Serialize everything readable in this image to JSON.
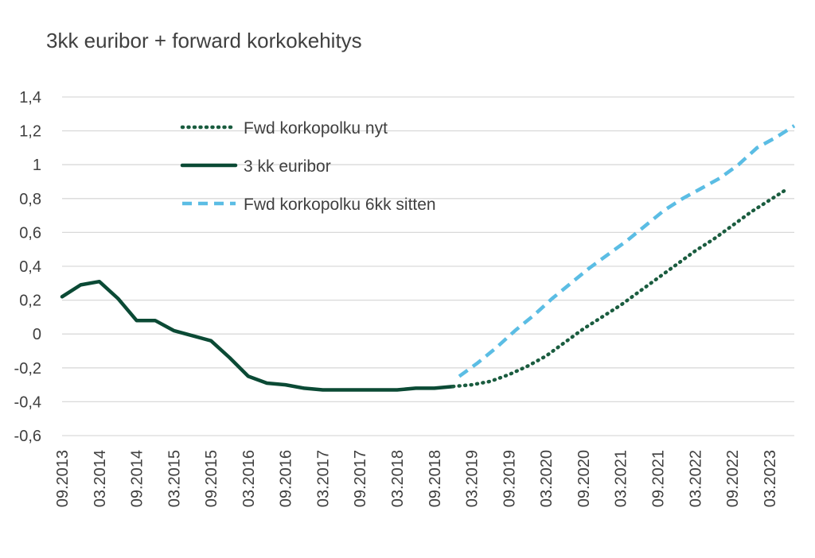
{
  "chart_data": {
    "type": "line",
    "title": "3kk euribor + forward korkokehitys",
    "xlabel": "",
    "ylabel": "",
    "ylim": [
      -0.6,
      1.4
    ],
    "yticks": [
      "1,4",
      "1,2",
      "1",
      "0,8",
      "0,6",
      "0,4",
      "0,2",
      "0",
      "-0,2",
      "-0,4",
      "-0,6"
    ],
    "ytick_values": [
      1.4,
      1.2,
      1.0,
      0.8,
      0.6,
      0.4,
      0.2,
      0.0,
      -0.2,
      -0.4,
      -0.6
    ],
    "xticks": [
      "09.2013",
      "03.2014",
      "09.2014",
      "03.2015",
      "09.2015",
      "03.2016",
      "09.2016",
      "03.2017",
      "09.2017",
      "03.2018",
      "09.2018",
      "03.2019",
      "09.2019",
      "03.2020",
      "09.2020",
      "03.2021",
      "09.2021",
      "03.2022",
      "09.2022",
      "03.2023"
    ],
    "grid": true,
    "legend_position": "top-left-inside",
    "series": [
      {
        "name": "Fwd korkopolku nyt",
        "style": "dotted",
        "color": "#1a5c3f",
        "points": [
          [
            "2018-12",
            -0.31
          ],
          [
            "2019-03",
            -0.3
          ],
          [
            "2019-06",
            -0.28
          ],
          [
            "2019-09",
            -0.24
          ],
          [
            "2019-12",
            -0.19
          ],
          [
            "2020-03",
            -0.13
          ],
          [
            "2020-06",
            -0.05
          ],
          [
            "2020-09",
            0.03
          ],
          [
            "2020-12",
            0.1
          ],
          [
            "2021-03",
            0.17
          ],
          [
            "2021-06",
            0.25
          ],
          [
            "2021-09",
            0.33
          ],
          [
            "2021-12",
            0.41
          ],
          [
            "2022-03",
            0.49
          ],
          [
            "2022-06",
            0.56
          ],
          [
            "2022-09",
            0.64
          ],
          [
            "2022-12",
            0.72
          ],
          [
            "2023-03",
            0.79
          ],
          [
            "2023-06",
            0.86
          ]
        ]
      },
      {
        "name": "3 kk euribor",
        "style": "solid",
        "color": "#0b4a35",
        "points": [
          [
            "2013-09",
            0.22
          ],
          [
            "2013-12",
            0.29
          ],
          [
            "2014-03",
            0.31
          ],
          [
            "2014-06",
            0.21
          ],
          [
            "2014-09",
            0.08
          ],
          [
            "2014-12",
            0.08
          ],
          [
            "2015-03",
            0.02
          ],
          [
            "2015-06",
            -0.01
          ],
          [
            "2015-09",
            -0.04
          ],
          [
            "2015-12",
            -0.14
          ],
          [
            "2016-03",
            -0.25
          ],
          [
            "2016-06",
            -0.29
          ],
          [
            "2016-09",
            -0.3
          ],
          [
            "2016-12",
            -0.32
          ],
          [
            "2017-03",
            -0.33
          ],
          [
            "2017-06",
            -0.33
          ],
          [
            "2017-09",
            -0.33
          ],
          [
            "2017-12",
            -0.33
          ],
          [
            "2018-03",
            -0.33
          ],
          [
            "2018-06",
            -0.32
          ],
          [
            "2018-09",
            -0.32
          ],
          [
            "2018-12",
            -0.31
          ]
        ]
      },
      {
        "name": "Fwd korkopolku 6kk sitten",
        "style": "dashed",
        "color": "#5bbde4",
        "points": [
          [
            "2019-01",
            -0.25
          ],
          [
            "2019-04",
            -0.17
          ],
          [
            "2019-07",
            -0.08
          ],
          [
            "2019-10",
            0.02
          ],
          [
            "2020-01",
            0.11
          ],
          [
            "2020-04",
            0.21
          ],
          [
            "2020-07",
            0.3
          ],
          [
            "2020-10",
            0.39
          ],
          [
            "2021-01",
            0.47
          ],
          [
            "2021-04",
            0.55
          ],
          [
            "2021-07",
            0.64
          ],
          [
            "2021-10",
            0.73
          ],
          [
            "2022-01",
            0.8
          ],
          [
            "2022-04",
            0.86
          ],
          [
            "2022-07",
            0.92
          ],
          [
            "2022-10",
            1.0
          ],
          [
            "2023-01",
            1.1
          ],
          [
            "2023-04",
            1.16
          ],
          [
            "2023-07",
            1.23
          ]
        ]
      }
    ]
  }
}
